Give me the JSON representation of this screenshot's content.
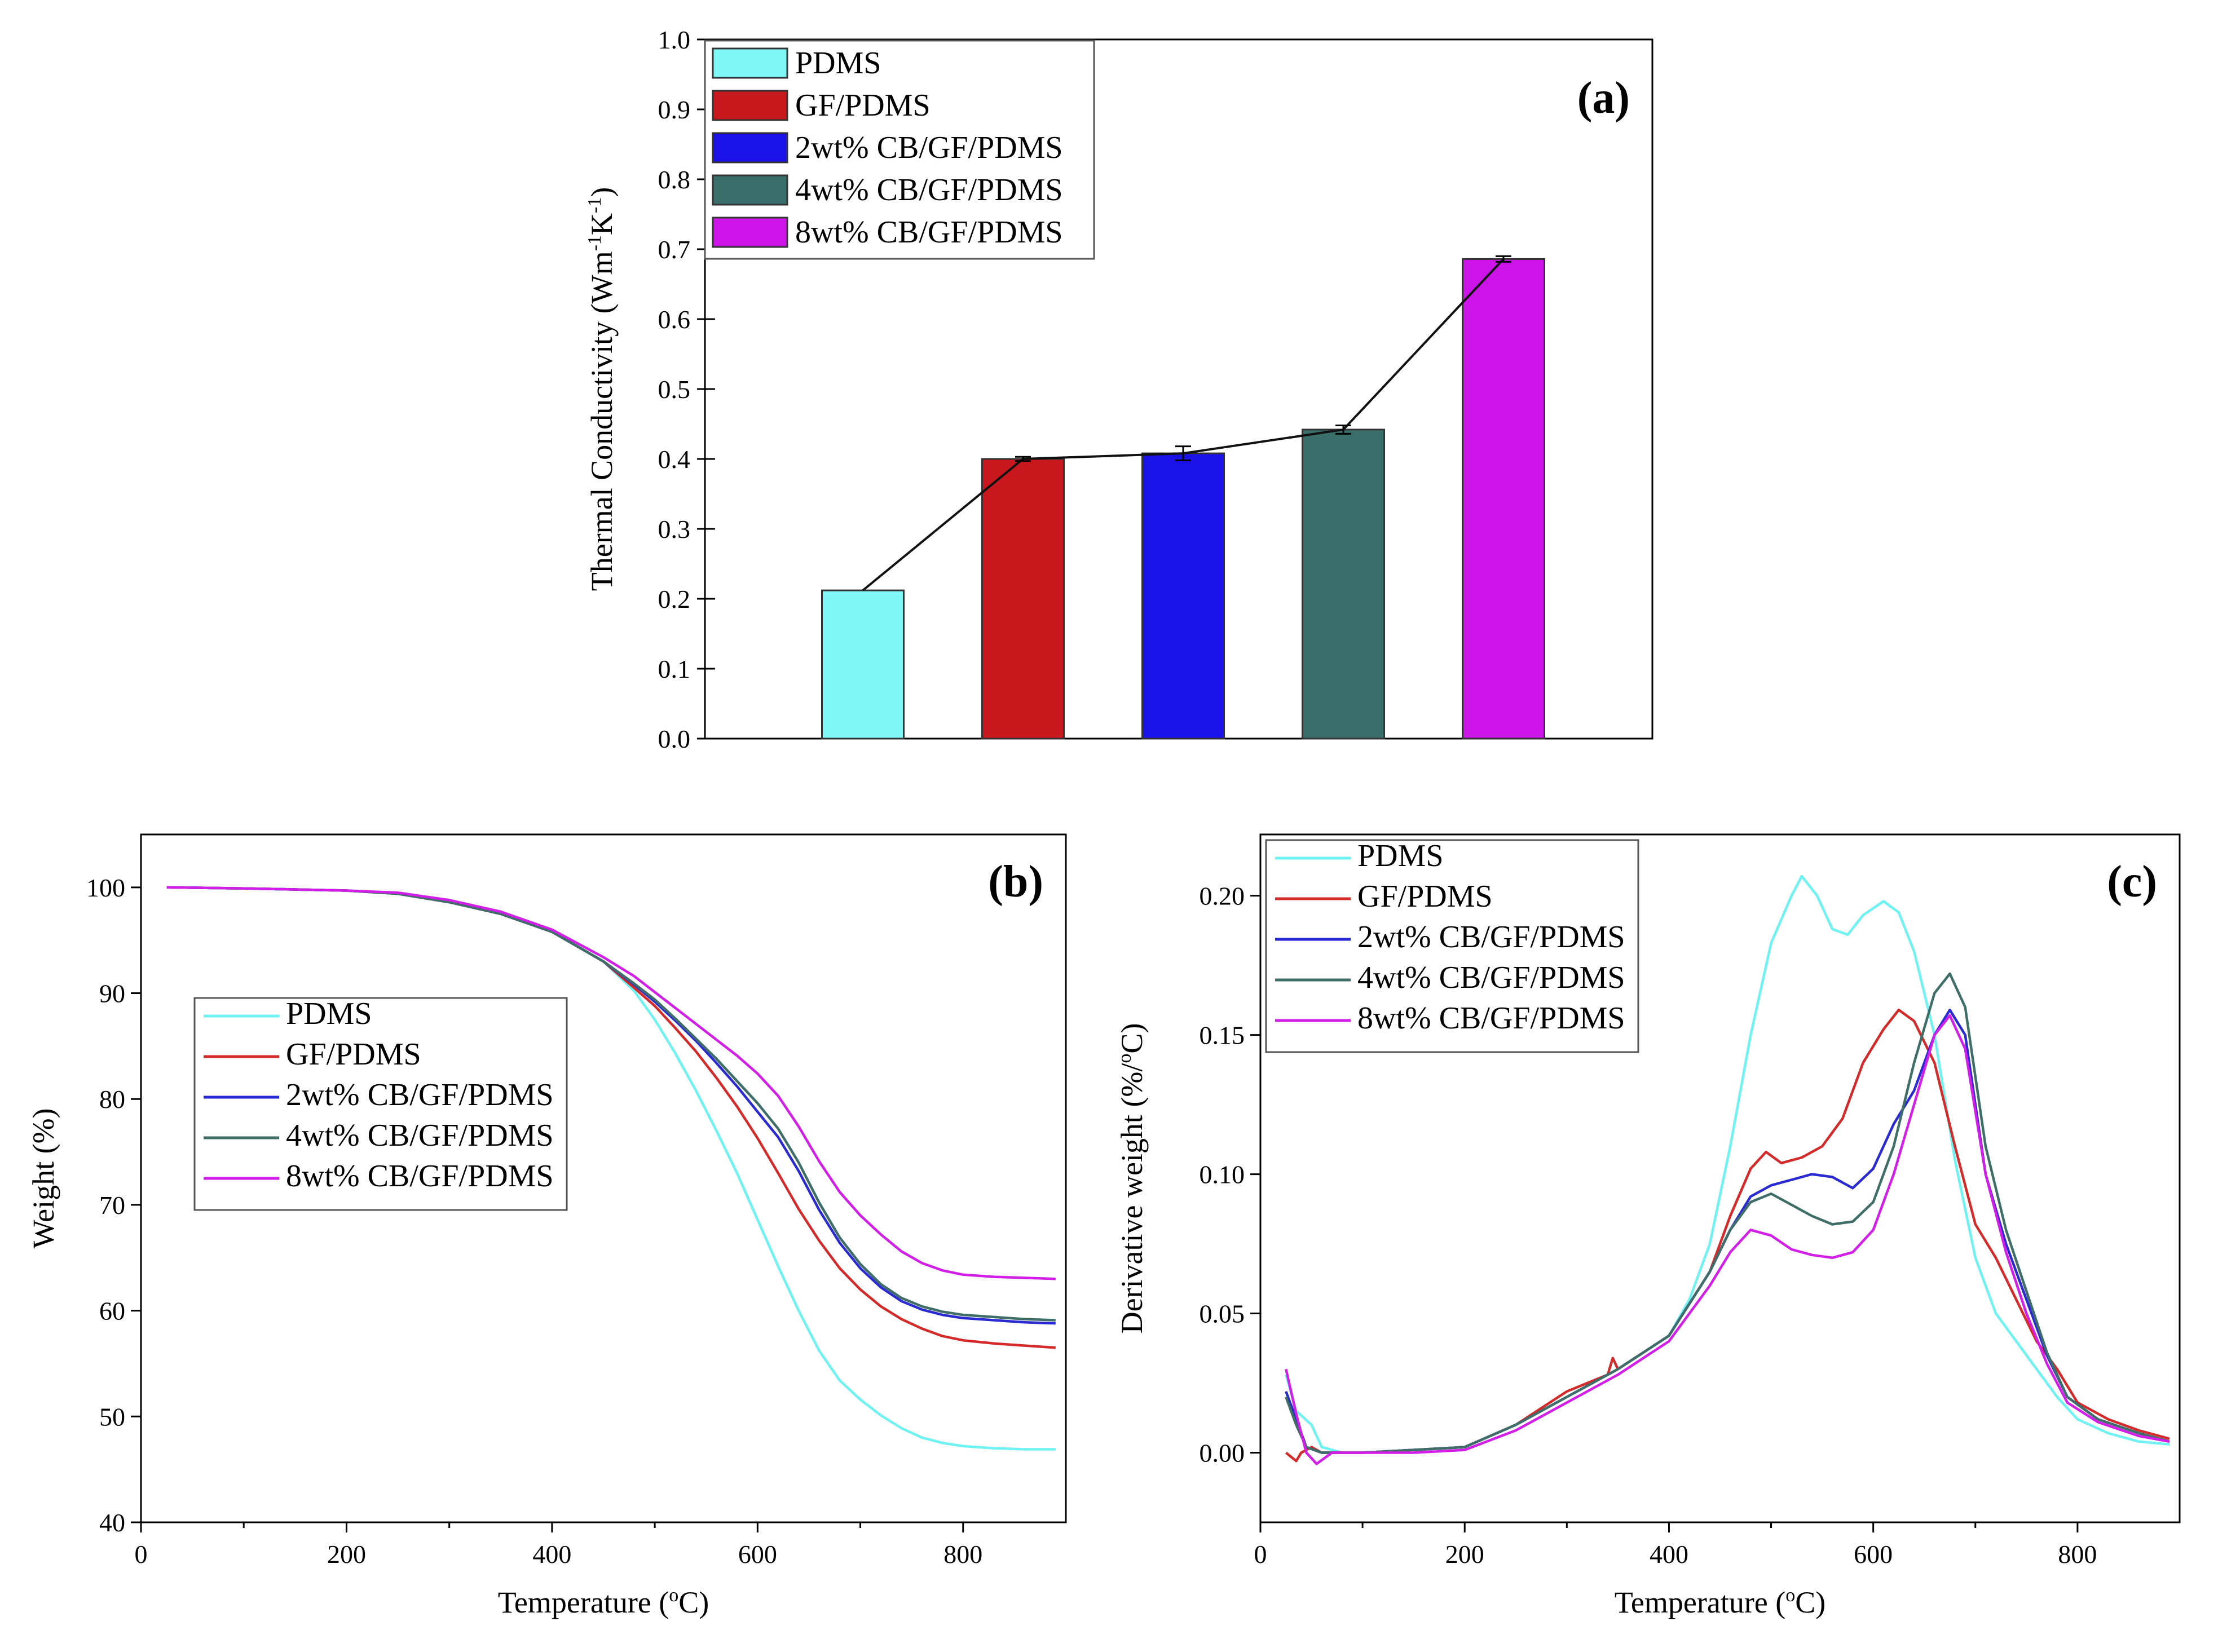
{
  "chart_data": [
    {
      "panel": "a",
      "type": "bar",
      "title": "",
      "panel_label": "(a)",
      "ylabel": "Thermal Conductivity (Wm-1K-1)",
      "ylabel_parts": [
        "Thermal Conductivity (Wm",
        "-1",
        "K",
        "-1",
        ")"
      ],
      "xlabel": "",
      "ylim": [
        0.0,
        1.0
      ],
      "yticks": [
        "0.0",
        "0.1",
        "0.2",
        "0.3",
        "0.4",
        "0.5",
        "0.6",
        "0.7",
        "0.8",
        "0.9",
        "1.0"
      ],
      "categories": [
        "PDMS",
        "GF/PDMS",
        "2wt% CB/GF/PDMS",
        "4wt% CB/GF/PDMS",
        "8wt% CB/GF/PDMS"
      ],
      "values": [
        0.212,
        0.4,
        0.408,
        0.442,
        0.686
      ],
      "errors": [
        0.0,
        0.003,
        0.01,
        0.006,
        0.004
      ],
      "colors": [
        "#7ff7f7",
        "#c8181e",
        "#1a12e6",
        "#3a6e6a",
        "#cc14e8"
      ],
      "connecting_line": true,
      "legend": {
        "position": "top-left",
        "entries": [
          "PDMS",
          "GF/PDMS",
          "2wt% CB/GF/PDMS",
          "4wt% CB/GF/PDMS",
          "8wt% CB/GF/PDMS"
        ]
      }
    },
    {
      "panel": "b",
      "type": "line",
      "panel_label": "(b)",
      "xlabel": "Temperature (°C)",
      "xlabel_parts": [
        "Temperature (",
        "o",
        "C)"
      ],
      "ylabel": "Weight (%)",
      "xlim": [
        0,
        900
      ],
      "ylim": [
        40,
        105
      ],
      "xticks": [
        0,
        200,
        400,
        600,
        800
      ],
      "yticks": [
        40,
        50,
        60,
        70,
        80,
        90,
        100
      ],
      "legend": {
        "position": "center-left"
      },
      "series": [
        {
          "name": "PDMS",
          "color": "#6ff2f2",
          "x": [
            25,
            100,
            200,
            250,
            300,
            350,
            400,
            450,
            480,
            500,
            520,
            540,
            560,
            580,
            600,
            620,
            640,
            660,
            680,
            700,
            720,
            740,
            760,
            780,
            800,
            830,
            860,
            890
          ],
          "y": [
            100,
            99.9,
            99.7,
            99.4,
            98.6,
            97.5,
            95.8,
            93.0,
            90.2,
            87.5,
            84.3,
            80.8,
            77.0,
            73.0,
            68.6,
            64.2,
            60.0,
            56.2,
            53.4,
            51.6,
            50.1,
            48.9,
            48.0,
            47.5,
            47.2,
            47.0,
            46.9,
            46.9
          ]
        },
        {
          "name": "GF/PDMS",
          "color": "#d42a2a",
          "x": [
            25,
            100,
            200,
            250,
            300,
            350,
            400,
            450,
            480,
            500,
            520,
            540,
            560,
            580,
            600,
            620,
            640,
            660,
            680,
            700,
            720,
            740,
            760,
            780,
            800,
            830,
            860,
            890
          ],
          "y": [
            100,
            99.9,
            99.7,
            99.4,
            98.6,
            97.5,
            95.8,
            93.0,
            90.5,
            88.8,
            86.7,
            84.5,
            82.0,
            79.3,
            76.3,
            73.0,
            69.6,
            66.6,
            64.0,
            62.0,
            60.4,
            59.2,
            58.3,
            57.6,
            57.2,
            56.9,
            56.7,
            56.5
          ]
        },
        {
          "name": "2wt% CB/GF/PDMS",
          "color": "#2a2ad2",
          "x": [
            25,
            100,
            200,
            250,
            300,
            350,
            400,
            450,
            480,
            500,
            520,
            540,
            560,
            580,
            600,
            620,
            640,
            660,
            680,
            700,
            720,
            740,
            760,
            780,
            800,
            830,
            860,
            890
          ],
          "y": [
            100,
            99.9,
            99.7,
            99.4,
            98.6,
            97.5,
            95.8,
            93.0,
            90.8,
            89.2,
            87.4,
            85.5,
            83.4,
            81.2,
            78.8,
            76.4,
            73.2,
            69.5,
            66.4,
            64.0,
            62.2,
            60.9,
            60.1,
            59.6,
            59.3,
            59.1,
            58.9,
            58.8
          ]
        },
        {
          "name": "4wt% CB/GF/PDMS",
          "color": "#3f6e68",
          "x": [
            25,
            100,
            200,
            250,
            300,
            350,
            400,
            450,
            480,
            500,
            520,
            540,
            560,
            580,
            600,
            620,
            640,
            660,
            680,
            700,
            720,
            740,
            760,
            780,
            800,
            830,
            860,
            890
          ],
          "y": [
            100,
            99.9,
            99.7,
            99.4,
            98.6,
            97.5,
            95.8,
            93.0,
            90.9,
            89.4,
            87.6,
            85.7,
            83.8,
            81.7,
            79.6,
            77.2,
            74.0,
            70.2,
            66.9,
            64.4,
            62.5,
            61.2,
            60.4,
            59.9,
            59.6,
            59.4,
            59.2,
            59.1
          ]
        },
        {
          "name": "8wt% CB/GF/PDMS",
          "color": "#d21ee8",
          "x": [
            25,
            100,
            200,
            250,
            300,
            350,
            400,
            450,
            480,
            500,
            520,
            540,
            560,
            580,
            600,
            620,
            640,
            660,
            680,
            700,
            720,
            740,
            760,
            780,
            800,
            830,
            860,
            890
          ],
          "y": [
            100,
            99.9,
            99.7,
            99.5,
            98.8,
            97.7,
            96.0,
            93.4,
            91.6,
            90.1,
            88.6,
            87.1,
            85.6,
            84.1,
            82.4,
            80.3,
            77.4,
            74.1,
            71.2,
            69.0,
            67.2,
            65.6,
            64.5,
            63.8,
            63.4,
            63.2,
            63.1,
            63.0
          ]
        }
      ]
    },
    {
      "panel": "c",
      "type": "line",
      "panel_label": "(c)",
      "xlabel": "Temperature (°C)",
      "xlabel_parts": [
        "Temperature (",
        "o",
        "C)"
      ],
      "ylabel": "Derivative weight (%/°C)",
      "ylabel_parts": [
        "Derivative weight (%/",
        "o",
        "C)"
      ],
      "xlim": [
        0,
        900
      ],
      "ylim": [
        -0.025,
        0.222
      ],
      "xticks": [
        0,
        200,
        400,
        600,
        800
      ],
      "yticks": [
        "0.00",
        "0.05",
        "0.10",
        "0.15",
        "0.20"
      ],
      "legend": {
        "position": "top-left"
      },
      "series": [
        {
          "name": "PDMS",
          "color": "#6ff2f2",
          "x": [
            25,
            35,
            50,
            60,
            80,
            100,
            150,
            200,
            250,
            300,
            350,
            400,
            420,
            440,
            460,
            480,
            500,
            520,
            530,
            545,
            560,
            575,
            590,
            610,
            625,
            640,
            660,
            680,
            700,
            720,
            740,
            760,
            780,
            800,
            830,
            860,
            890
          ],
          "y": [
            0.028,
            0.015,
            0.01,
            0.002,
            0.0,
            0.0,
            0.001,
            0.002,
            0.01,
            0.02,
            0.03,
            0.042,
            0.055,
            0.075,
            0.11,
            0.15,
            0.183,
            0.2,
            0.207,
            0.2,
            0.188,
            0.186,
            0.193,
            0.198,
            0.194,
            0.18,
            0.15,
            0.105,
            0.07,
            0.05,
            0.04,
            0.03,
            0.02,
            0.012,
            0.007,
            0.004,
            0.003
          ]
        },
        {
          "name": "GF/PDMS",
          "color": "#d42a2a",
          "x": [
            25,
            35,
            40,
            50,
            60,
            80,
            100,
            150,
            200,
            250,
            300,
            340,
            345,
            350,
            400,
            440,
            460,
            480,
            495,
            510,
            530,
            550,
            570,
            590,
            610,
            625,
            640,
            660,
            680,
            700,
            720,
            740,
            760,
            780,
            800,
            830,
            860,
            890
          ],
          "y": [
            0.0,
            -0.003,
            0.0,
            0.002,
            0.0,
            0.0,
            0.0,
            0.001,
            0.002,
            0.01,
            0.022,
            0.028,
            0.034,
            0.03,
            0.042,
            0.065,
            0.085,
            0.102,
            0.108,
            0.104,
            0.106,
            0.11,
            0.12,
            0.14,
            0.152,
            0.159,
            0.155,
            0.14,
            0.11,
            0.082,
            0.07,
            0.055,
            0.04,
            0.03,
            0.018,
            0.012,
            0.008,
            0.005
          ]
        },
        {
          "name": "2wt% CB/GF/PDMS",
          "color": "#2a2ad2",
          "x": [
            25,
            35,
            45,
            60,
            80,
            100,
            150,
            200,
            250,
            300,
            350,
            400,
            440,
            460,
            480,
            500,
            520,
            540,
            560,
            580,
            600,
            620,
            640,
            660,
            675,
            690,
            710,
            730,
            750,
            770,
            790,
            820,
            860,
            890
          ],
          "y": [
            0.022,
            0.012,
            0.002,
            0.0,
            0.0,
            0.0,
            0.001,
            0.002,
            0.01,
            0.02,
            0.03,
            0.042,
            0.065,
            0.08,
            0.092,
            0.096,
            0.098,
            0.1,
            0.099,
            0.095,
            0.102,
            0.118,
            0.13,
            0.15,
            0.159,
            0.15,
            0.1,
            0.075,
            0.055,
            0.035,
            0.02,
            0.012,
            0.007,
            0.004
          ]
        },
        {
          "name": "4wt% CB/GF/PDMS",
          "color": "#3f6e68",
          "x": [
            25,
            35,
            45,
            60,
            80,
            100,
            150,
            200,
            250,
            300,
            350,
            400,
            440,
            460,
            480,
            500,
            520,
            540,
            560,
            580,
            600,
            620,
            640,
            660,
            675,
            690,
            710,
            730,
            750,
            770,
            790,
            820,
            860,
            890
          ],
          "y": [
            0.02,
            0.01,
            0.002,
            0.0,
            0.0,
            0.0,
            0.001,
            0.002,
            0.01,
            0.02,
            0.03,
            0.042,
            0.065,
            0.08,
            0.09,
            0.093,
            0.089,
            0.085,
            0.082,
            0.083,
            0.09,
            0.11,
            0.14,
            0.165,
            0.172,
            0.16,
            0.11,
            0.08,
            0.058,
            0.036,
            0.02,
            0.012,
            0.007,
            0.004
          ]
        },
        {
          "name": "8wt% CB/GF/PDMS",
          "color": "#d21ee8",
          "x": [
            25,
            35,
            45,
            55,
            70,
            100,
            150,
            200,
            250,
            300,
            350,
            400,
            440,
            460,
            480,
            500,
            520,
            540,
            560,
            580,
            600,
            620,
            640,
            660,
            675,
            690,
            710,
            730,
            750,
            770,
            790,
            820,
            860,
            890
          ],
          "y": [
            0.03,
            0.014,
            0.0,
            -0.004,
            0.0,
            0.0,
            0.0,
            0.001,
            0.008,
            0.018,
            0.028,
            0.04,
            0.06,
            0.072,
            0.08,
            0.078,
            0.073,
            0.071,
            0.07,
            0.072,
            0.08,
            0.1,
            0.125,
            0.15,
            0.157,
            0.145,
            0.1,
            0.072,
            0.05,
            0.032,
            0.018,
            0.011,
            0.006,
            0.004
          ]
        }
      ]
    }
  ]
}
